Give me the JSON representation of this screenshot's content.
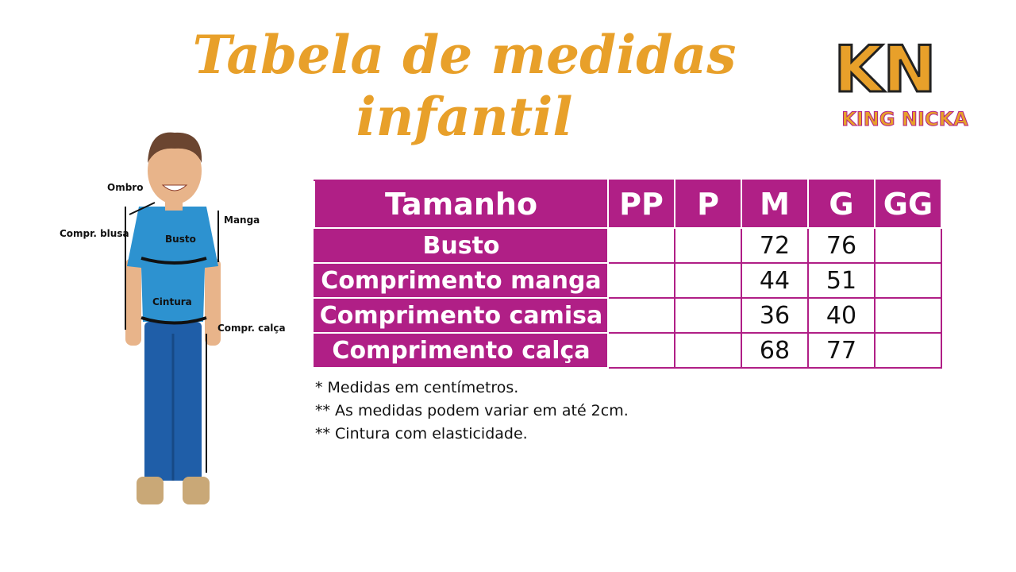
{
  "title": "Tabela de medidas infantil",
  "logo": {
    "monogram": "KN",
    "name": "KING NICKA"
  },
  "figure": {
    "labels": [
      "Ombro",
      "Manga",
      "Compr. blusa",
      "Busto",
      "Cintura",
      "Compr. calça"
    ]
  },
  "table": {
    "header": [
      "Tamanho",
      "PP",
      "P",
      "M",
      "G",
      "GG"
    ],
    "rows": [
      [
        "Busto",
        null,
        null,
        72,
        76,
        null
      ],
      [
        "Comprimento manga",
        null,
        null,
        44,
        51,
        null
      ],
      [
        "Comprimento camisa",
        null,
        null,
        36,
        40,
        null
      ],
      [
        "Comprimento calça",
        null,
        null,
        68,
        77,
        null
      ]
    ]
  },
  "notes": [
    "* Medidas em centímetros.",
    "** As medidas podem variar em até 2cm.",
    "** Cintura com elasticidade."
  ]
}
